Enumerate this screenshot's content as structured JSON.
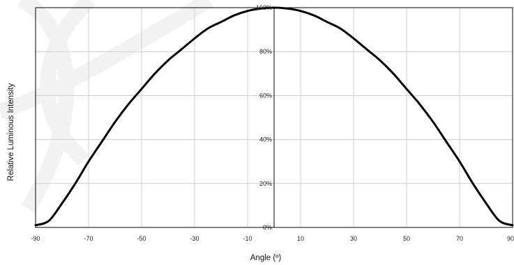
{
  "chart_data": {
    "type": "line",
    "title": "",
    "xlabel": "Angle (º)",
    "ylabel": "Relative Luminous Intensity",
    "xlim": [
      -90,
      90
    ],
    "ylim": [
      0,
      100
    ],
    "x_ticks": [
      "-90",
      "-70",
      "-50",
      "-30",
      "-10",
      "10",
      "30",
      "50",
      "70",
      "90"
    ],
    "y_ticks": [
      "0%",
      "20%",
      "40%",
      "60%",
      "80%",
      "100%"
    ],
    "grid": true,
    "legend": "none",
    "series": [
      {
        "color": "#000000",
        "x": [
          -90,
          -85,
          -80,
          -75,
          -70,
          -65,
          -60,
          -55,
          -50,
          -45,
          -40,
          -35,
          -30,
          -25,
          -20,
          -15,
          -10,
          -5,
          0,
          5,
          10,
          15,
          20,
          25,
          30,
          35,
          40,
          45,
          50,
          55,
          60,
          65,
          70,
          75,
          80,
          85,
          90
        ],
        "y": [
          1,
          3,
          11,
          20,
          30,
          39,
          48,
          56,
          63,
          70,
          76,
          81,
          86,
          90.5,
          93.5,
          96.5,
          98.5,
          99.6,
          100,
          99.6,
          98.5,
          96.5,
          93.5,
          90.5,
          86,
          81,
          76,
          70,
          63,
          56,
          48,
          39,
          30,
          20,
          11,
          3,
          1
        ]
      }
    ]
  },
  "colors": {
    "grid": "#cccccc",
    "axis": "#000000",
    "line": "#000000",
    "watermark": "#f2f2f2"
  }
}
